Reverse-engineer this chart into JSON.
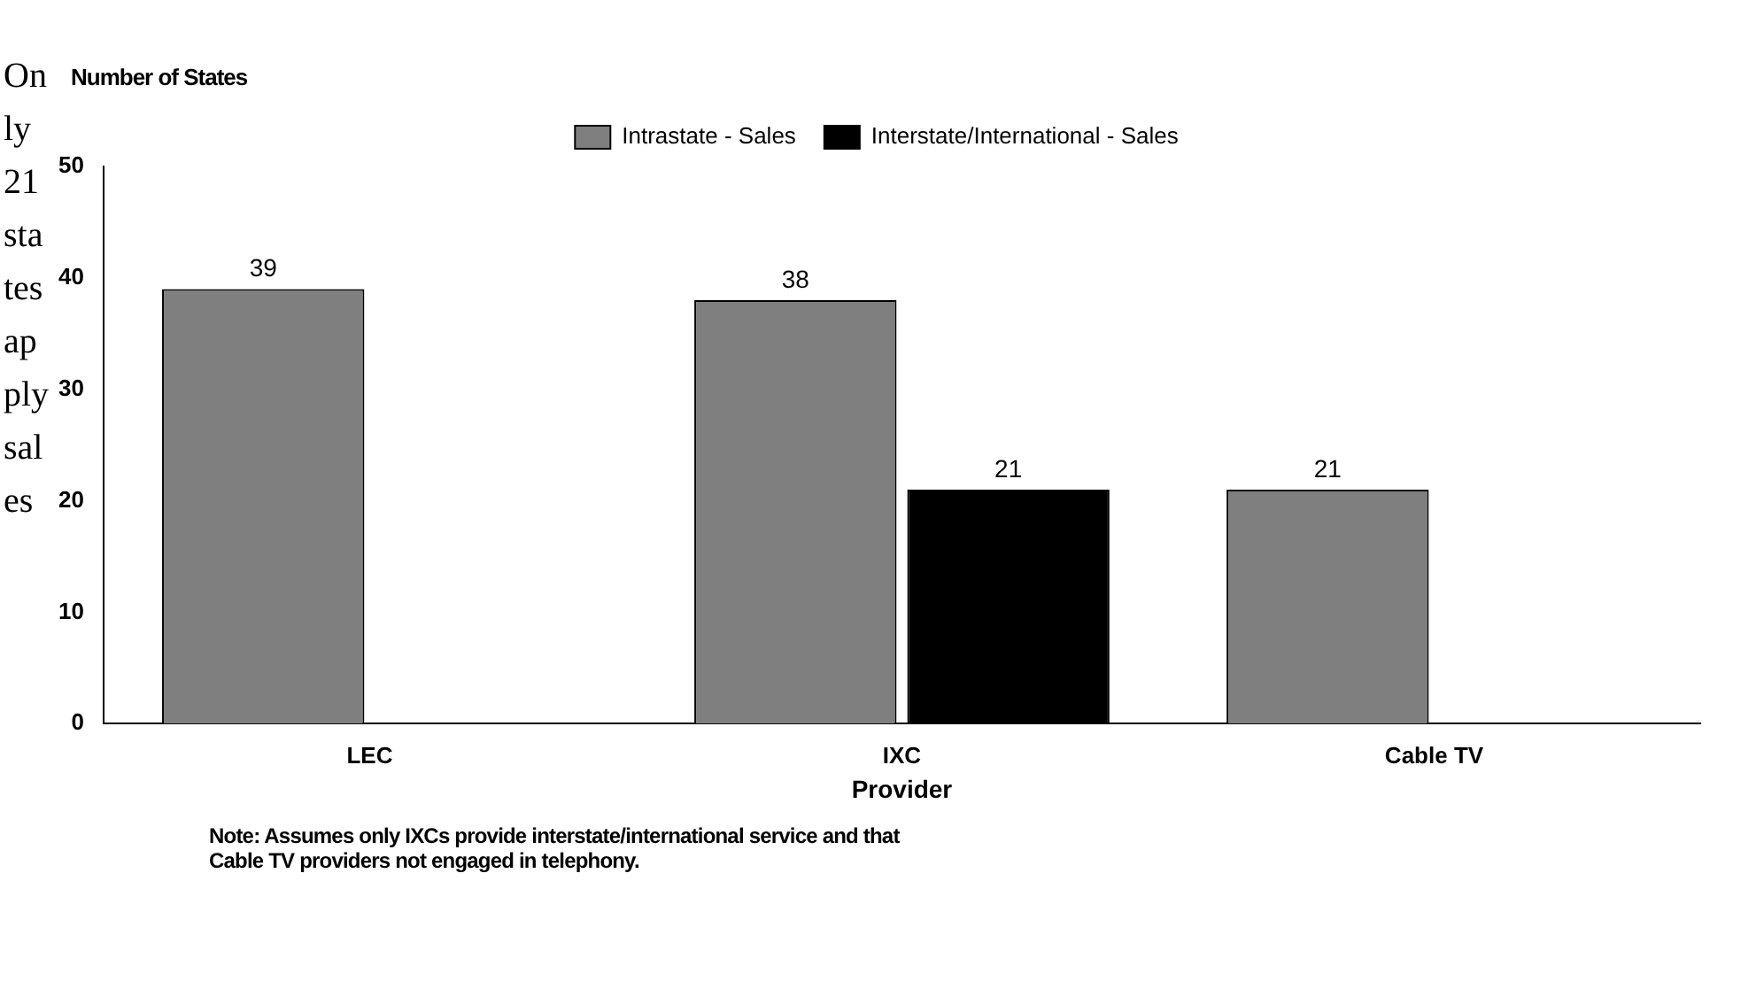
{
  "chart_data": {
    "type": "bar",
    "xlabel": "Provider",
    "ylabel": "Number of States",
    "categories": [
      "LEC",
      "IXC",
      "Cable TV"
    ],
    "series": [
      {
        "name": "Intrastate - Sales",
        "color": "#7f7f7f",
        "values": [
          39,
          38,
          21
        ],
        "value_labels": [
          "39",
          "38",
          "21"
        ]
      },
      {
        "name": "Interstate/International - Sales",
        "color": "#000000",
        "values": [
          0,
          21,
          0
        ],
        "value_labels": [
          null,
          "21",
          null
        ]
      }
    ],
    "ylim": [
      0,
      50
    ],
    "yticks": [
      0,
      10,
      20,
      30,
      40,
      50
    ],
    "grid": false,
    "legend": "top",
    "annotations": [
      "Only 21 states apply sales",
      "Note: Assumes only IXCs provide interstate/international service and that\nCable TV providers not engaged in telephony."
    ]
  }
}
